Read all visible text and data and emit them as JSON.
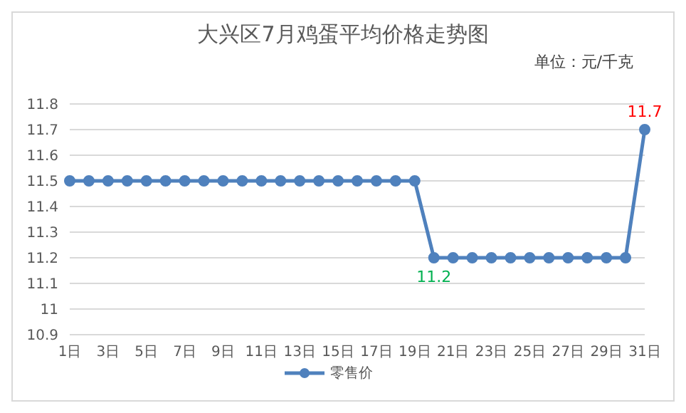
{
  "chart_data": {
    "type": "line",
    "title": "大兴区7月鸡蛋平均价格走势图",
    "subtitle": "单位：元/千克",
    "categories": [
      "1日",
      null,
      "3日",
      null,
      "5日",
      null,
      "7日",
      null,
      "9日",
      null,
      "11日",
      null,
      "13日",
      null,
      "15日",
      null,
      "17日",
      null,
      "19日",
      null,
      "21日",
      null,
      "23日",
      null,
      "25日",
      null,
      "27日",
      null,
      "29日",
      null,
      "31日"
    ],
    "series": [
      {
        "name": "零售价",
        "color": "#4f81bd",
        "values": [
          11.5,
          11.5,
          11.5,
          11.5,
          11.5,
          11.5,
          11.5,
          11.5,
          11.5,
          11.5,
          11.5,
          11.5,
          11.5,
          11.5,
          11.5,
          11.5,
          11.5,
          11.5,
          11.5,
          11.2,
          11.2,
          11.2,
          11.2,
          11.2,
          11.2,
          11.2,
          11.2,
          11.2,
          11.2,
          11.2,
          11.7
        ],
        "value_labels": [
          null,
          null,
          null,
          null,
          null,
          null,
          null,
          null,
          null,
          null,
          null,
          null,
          null,
          null,
          null,
          null,
          null,
          null,
          null,
          "11.2",
          null,
          null,
          null,
          null,
          null,
          null,
          null,
          null,
          null,
          null,
          "11.7"
        ]
      }
    ],
    "ylim": [
      10.9,
      11.8
    ],
    "yticks": [
      10.9,
      11,
      11.1,
      11.2,
      11.3,
      11.4,
      11.5,
      11.6,
      11.7,
      11.8
    ],
    "grid": "y",
    "legend": "bottom",
    "marker": "circle",
    "line_style": "solid"
  }
}
